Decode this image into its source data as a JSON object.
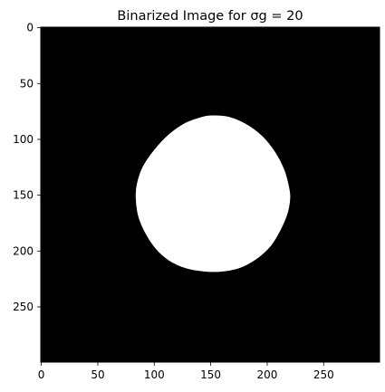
{
  "chart_data": {
    "type": "heatmap",
    "title": "Binarized Image for σg = 20",
    "xlabel": "",
    "ylabel": "",
    "image_size": [
      300,
      300
    ],
    "xlim": [
      -0.5,
      299.5
    ],
    "ylim": [
      299.5,
      -0.5
    ],
    "x_ticks": [
      0,
      50,
      100,
      150,
      200,
      250
    ],
    "y_ticks": [
      0,
      50,
      100,
      150,
      200,
      250
    ],
    "colormap": "gray",
    "background_value": 0,
    "foreground_value": 1,
    "colors": {
      "background": "#000000",
      "foreground": "#ffffff"
    },
    "blob": {
      "shape": "rounded blob",
      "boundary": [
        [
          150,
          79
        ],
        [
          165,
          80
        ],
        [
          180,
          86
        ],
        [
          195,
          97
        ],
        [
          207,
          112
        ],
        [
          215,
          128
        ],
        [
          219,
          143
        ],
        [
          220,
          152
        ],
        [
          218,
          165
        ],
        [
          212,
          180
        ],
        [
          203,
          195
        ],
        [
          190,
          207
        ],
        [
          175,
          215
        ],
        [
          160,
          218
        ],
        [
          145,
          218
        ],
        [
          128,
          215
        ],
        [
          113,
          208
        ],
        [
          101,
          197
        ],
        [
          92,
          183
        ],
        [
          86,
          168
        ],
        [
          84,
          152
        ],
        [
          85,
          140
        ],
        [
          90,
          125
        ],
        [
          100,
          110
        ],
        [
          113,
          96
        ],
        [
          127,
          86
        ],
        [
          140,
          81
        ]
      ]
    }
  }
}
